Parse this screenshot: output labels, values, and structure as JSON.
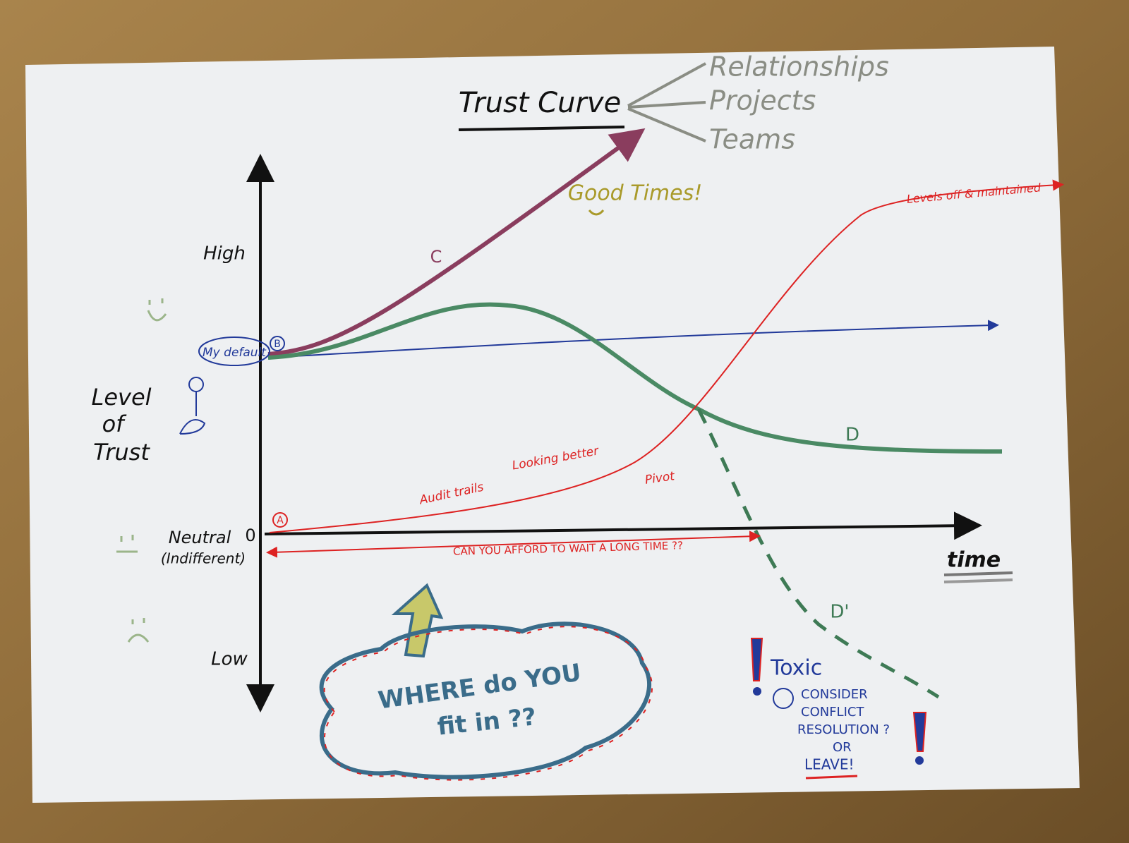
{
  "title": "Trust Curve",
  "applies_to": [
    "Relationships",
    "Projects",
    "Teams"
  ],
  "y_axis": {
    "label": [
      "Level",
      "of",
      "Trust"
    ],
    "high": "High",
    "neutral": "Neutral",
    "zero": "0",
    "neutral_note": "(Indifferent)",
    "low": "Low"
  },
  "x_axis": {
    "label": "time"
  },
  "default": {
    "label": "My default",
    "marker": "B"
  },
  "curves": {
    "a": "A",
    "c": "C",
    "d": "D",
    "d_prime": "D'"
  },
  "annotations": {
    "good_times": "Good Times!",
    "levels_off": "Levels off & maintained",
    "audit": "Audit trails",
    "looking_better": "Looking better",
    "pivot": "Pivot",
    "wait": "CAN YOU AFFORD TO WAIT A LONG TIME ??"
  },
  "question": [
    "WHERE do YOU",
    "fit in ??"
  ],
  "toxic": {
    "title": "Toxic",
    "lines": [
      "CONSIDER",
      "CONFLICT",
      "RESOLUTION ?",
      "OR",
      "LEAVE!"
    ]
  }
}
